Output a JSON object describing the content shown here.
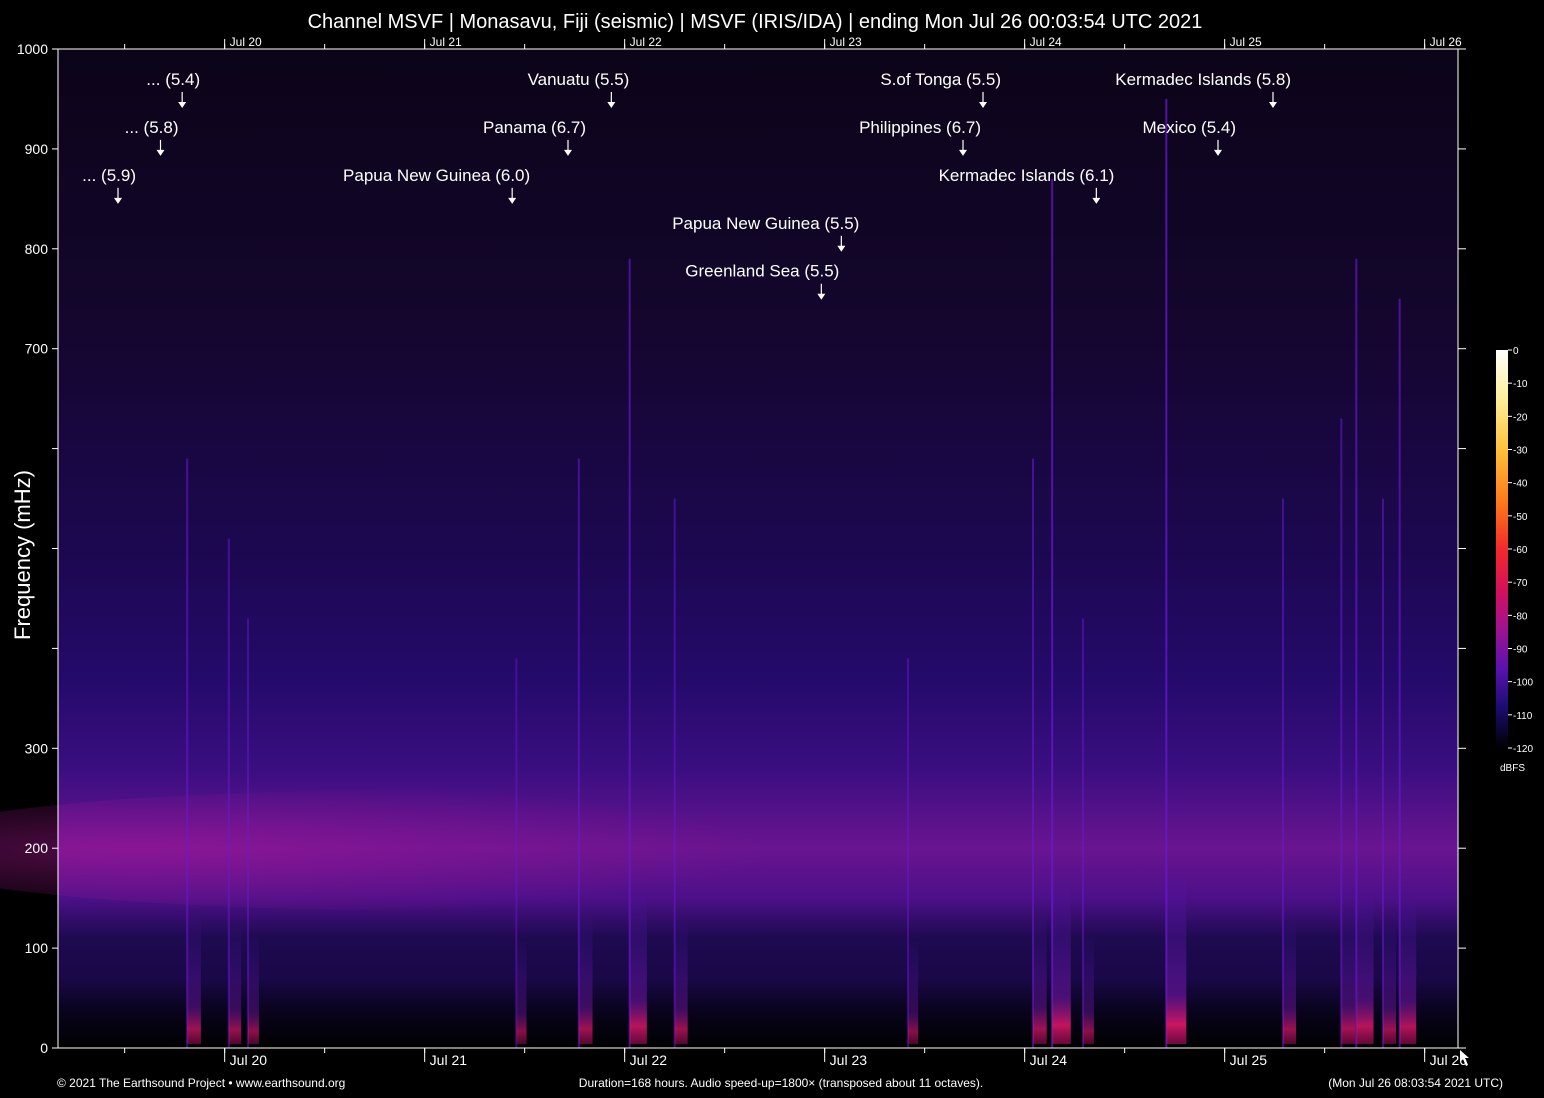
{
  "chart_data": {
    "type": "heatmap",
    "title": "Channel MSVF | Monasavu, Fiji (seismic) | MSVF (IRIS/IDA) | ending Mon Jul 26 00:03:54 UTC 2021",
    "ylabel": "Frequency (mHz)",
    "ylim": [
      0,
      1000
    ],
    "y_ticks": [
      {
        "value": 0,
        "label": "0"
      },
      {
        "value": 100,
        "label": "100"
      },
      {
        "value": 200,
        "label": "200"
      },
      {
        "value": 300,
        "label": "300"
      },
      {
        "value": 400,
        "label": ""
      },
      {
        "value": 500,
        "label": ""
      },
      {
        "value": 600,
        "label": ""
      },
      {
        "value": 700,
        "label": "700"
      },
      {
        "value": 800,
        "label": "800"
      },
      {
        "value": 900,
        "label": "900"
      },
      {
        "value": 1000,
        "label": "1000"
      }
    ],
    "x_hours_range": [
      0,
      168
    ],
    "x_dates": [
      {
        "hour": 20,
        "label": "Jul 20"
      },
      {
        "hour": 44,
        "label": "Jul 21"
      },
      {
        "hour": 68,
        "label": "Jul 22"
      },
      {
        "hour": 92,
        "label": "Jul 23"
      },
      {
        "hour": 116,
        "label": "Jul 24"
      },
      {
        "hour": 140,
        "label": "Jul 25"
      },
      {
        "hour": 164,
        "label": "Jul 26"
      }
    ],
    "colorbar": {
      "unit": "dBFS",
      "ticks": [
        "0",
        "-10",
        "-20",
        "-30",
        "-40",
        "-50",
        "-60",
        "-70",
        "-80",
        "-90",
        "-100",
        "-110",
        "-120"
      ],
      "colors": [
        "#ffffff",
        "#fff3a0",
        "#ffd24a",
        "#ffa326",
        "#ff6a10",
        "#ff2c20",
        "#e8104a",
        "#c0107a",
        "#8c10a0",
        "#5810b0",
        "#2a108a",
        "#100a40",
        "#000000"
      ]
    },
    "annotations": [
      {
        "label": "... (5.9)",
        "hour": 7.2,
        "freq": 845
      },
      {
        "label": "... (5.8)",
        "hour": 12.3,
        "freq": 893
      },
      {
        "label": "... (5.4)",
        "hour": 14.9,
        "freq": 941
      },
      {
        "label": "Papua New Guinea (6.0)",
        "hour": 54.5,
        "freq": 845
      },
      {
        "label": "Panama (6.7)",
        "hour": 61.2,
        "freq": 893
      },
      {
        "label": "Vanuatu (5.5)",
        "hour": 66.4,
        "freq": 941
      },
      {
        "label": "Papua New Guinea (5.5)",
        "hour": 94.0,
        "freq": 797
      },
      {
        "label": "Greenland Sea (5.5)",
        "hour": 91.6,
        "freq": 749
      },
      {
        "label": "Philippines (6.7)",
        "hour": 108.6,
        "freq": 893
      },
      {
        "label": "S.of Tonga (5.5)",
        "hour": 111.0,
        "freq": 941
      },
      {
        "label": "Kermadec Islands (6.1)",
        "hour": 124.6,
        "freq": 845
      },
      {
        "label": "Mexico (5.4)",
        "hour": 139.2,
        "freq": 893
      },
      {
        "label": "Kermadec Islands (5.8)",
        "hour": 145.8,
        "freq": 941
      }
    ],
    "events": [
      {
        "hour": 15.5,
        "intensity": 0.55
      },
      {
        "hour": 20.5,
        "intensity": 0.45
      },
      {
        "hour": 22.8,
        "intensity": 0.35
      },
      {
        "hour": 55.0,
        "intensity": 0.3
      },
      {
        "hour": 62.5,
        "intensity": 0.55
      },
      {
        "hour": 68.6,
        "intensity": 0.8
      },
      {
        "hour": 74.0,
        "intensity": 0.5
      },
      {
        "hour": 102.0,
        "intensity": 0.3
      },
      {
        "hour": 117.0,
        "intensity": 0.55
      },
      {
        "hour": 119.3,
        "intensity": 0.9
      },
      {
        "hour": 123.0,
        "intensity": 0.35
      },
      {
        "hour": 133.0,
        "intensity": 1.0
      },
      {
        "hour": 147.0,
        "intensity": 0.5
      },
      {
        "hour": 154.0,
        "intensity": 0.6
      },
      {
        "hour": 155.8,
        "intensity": 0.8
      },
      {
        "hour": 159.0,
        "intensity": 0.5
      },
      {
        "hour": 161.0,
        "intensity": 0.75
      }
    ]
  },
  "footer": {
    "left": "© 2021 The Earthsound Project • www.earthsound.org",
    "center": "Duration=168 hours. Audio speed-up=1800× (transposed about 11 octaves).",
    "right": "(Mon Jul 26 08:03:54 2021 UTC)"
  }
}
